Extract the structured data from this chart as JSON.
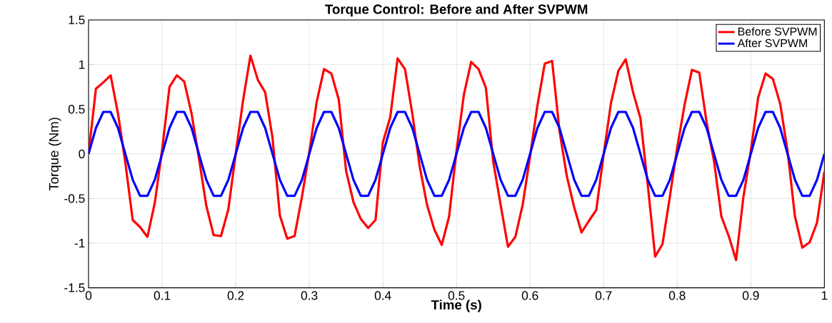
{
  "chart_data": {
    "type": "line",
    "title": "Torque Control: Before and After SVPWM",
    "xlabel": "Time (s)",
    "ylabel": "Torque (Nm)",
    "x": [
      0,
      0.01,
      0.02,
      0.03,
      0.04,
      0.05,
      0.06,
      0.07,
      0.08,
      0.09,
      0.1,
      0.11,
      0.12,
      0.13,
      0.14,
      0.15,
      0.16,
      0.17,
      0.18,
      0.19,
      0.2,
      0.21,
      0.22,
      0.23,
      0.24,
      0.25,
      0.26,
      0.27,
      0.28,
      0.29,
      0.3,
      0.31,
      0.32,
      0.33,
      0.34,
      0.35,
      0.36,
      0.37,
      0.38,
      0.39,
      0.4,
      0.41,
      0.42,
      0.43,
      0.44,
      0.45,
      0.46,
      0.47,
      0.48,
      0.49,
      0.5,
      0.51,
      0.52,
      0.53,
      0.54,
      0.55,
      0.56,
      0.57,
      0.58,
      0.59,
      0.6,
      0.61,
      0.62,
      0.63,
      0.64,
      0.65,
      0.66,
      0.67,
      0.68,
      0.69,
      0.7,
      0.71,
      0.72,
      0.73,
      0.74,
      0.75,
      0.76,
      0.77,
      0.78,
      0.79,
      0.8,
      0.81,
      0.82,
      0.83,
      0.84,
      0.85,
      0.86,
      0.87,
      0.88,
      0.89,
      0.9,
      0.91,
      0.92,
      0.93,
      0.94,
      0.95,
      0.96,
      0.97,
      0.98,
      0.99,
      1
    ],
    "series": [
      {
        "name": "Before SVPWM",
        "color": "#ff0000",
        "values": [
          0,
          0.73,
          0.8,
          0.88,
          0.45,
          -0.1,
          -0.74,
          -0.82,
          -0.93,
          -0.55,
          0.05,
          0.75,
          0.88,
          0.81,
          0.45,
          -0.05,
          -0.58,
          -0.91,
          -0.92,
          -0.62,
          0,
          0.6,
          1.1,
          0.83,
          0.69,
          0.18,
          -0.69,
          -0.95,
          -0.92,
          -0.48,
          0.02,
          0.58,
          0.95,
          0.9,
          0.61,
          -0.19,
          -0.54,
          -0.73,
          -0.83,
          -0.74,
          0.13,
          0.41,
          1.07,
          0.95,
          0.45,
          -0.14,
          -0.57,
          -0.85,
          -1.02,
          -0.7,
          0.03,
          0.66,
          1.03,
          0.95,
          0.74,
          -0.09,
          -0.57,
          -1.04,
          -0.93,
          -0.57,
          -0.03,
          0.54,
          1.01,
          1.04,
          0.26,
          -0.25,
          -0.6,
          -0.88,
          -0.75,
          -0.63,
          -0.01,
          0.57,
          0.93,
          1.06,
          0.69,
          0.4,
          -0.35,
          -1.15,
          -1.01,
          -0.48,
          0.07,
          0.55,
          0.94,
          0.91,
          0.35,
          -0.08,
          -0.7,
          -0.92,
          -1.19,
          -0.48,
          0.03,
          0.63,
          0.9,
          0.84,
          0.56,
          0.03,
          -0.7,
          -1.05,
          -0.99,
          -0.77,
          -0.2
        ]
      },
      {
        "name": "After SVPWM",
        "color": "#0000ff",
        "values": [
          0,
          0.29,
          0.47,
          0.47,
          0.29,
          0,
          -0.29,
          -0.47,
          -0.47,
          -0.29,
          0,
          0.29,
          0.47,
          0.47,
          0.29,
          0,
          -0.29,
          -0.47,
          -0.47,
          -0.29,
          0,
          0.29,
          0.47,
          0.47,
          0.29,
          0,
          -0.29,
          -0.47,
          -0.47,
          -0.29,
          0,
          0.29,
          0.47,
          0.47,
          0.29,
          0,
          -0.29,
          -0.47,
          -0.47,
          -0.29,
          0,
          0.29,
          0.47,
          0.47,
          0.29,
          0,
          -0.29,
          -0.47,
          -0.47,
          -0.29,
          0,
          0.29,
          0.47,
          0.47,
          0.29,
          0,
          -0.29,
          -0.47,
          -0.47,
          -0.29,
          0,
          0.29,
          0.47,
          0.47,
          0.29,
          0,
          -0.29,
          -0.47,
          -0.47,
          -0.29,
          0,
          0.29,
          0.47,
          0.47,
          0.29,
          0,
          -0.29,
          -0.47,
          -0.47,
          -0.29,
          0,
          0.29,
          0.47,
          0.47,
          0.29,
          0,
          -0.29,
          -0.47,
          -0.47,
          -0.29,
          0,
          0.29,
          0.47,
          0.47,
          0.29,
          0,
          -0.29,
          -0.47,
          -0.47,
          -0.29,
          0
        ]
      }
    ],
    "xlim": [
      0,
      1
    ],
    "ylim": [
      -1.5,
      1.5
    ],
    "xticks": [
      0,
      0.1,
      0.2,
      0.3,
      0.4,
      0.5,
      0.6,
      0.7,
      0.8,
      0.9,
      1
    ],
    "yticks": [
      -1.5,
      -1,
      -0.5,
      0,
      0.5,
      1,
      1.5
    ],
    "grid": true,
    "legend": "top right",
    "marker": "none",
    "line_style": "solid"
  }
}
